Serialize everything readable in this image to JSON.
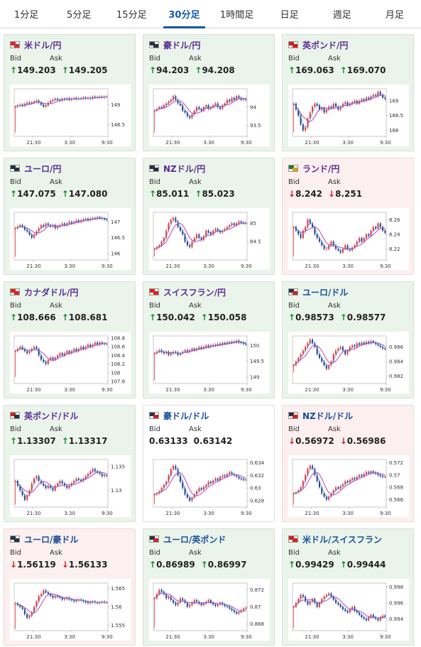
{
  "tabs": [
    {
      "label": "1分足",
      "active": false
    },
    {
      "label": "5分足",
      "active": false
    },
    {
      "label": "15分足",
      "active": false
    },
    {
      "label": "30分足",
      "active": true
    },
    {
      "label": "1時間足",
      "active": false
    },
    {
      "label": "日足",
      "active": false
    },
    {
      "label": "週足",
      "active": false
    },
    {
      "label": "月足",
      "active": false
    }
  ],
  "labels": {
    "bid": "Bid",
    "ask": "Ask"
  },
  "x_ticks": [
    "21:30",
    "3:30",
    "9:30"
  ],
  "cards": [
    {
      "name": "米ドル/円",
      "bid": "149.203",
      "ask": "149.205",
      "dir": "up",
      "name_color": "purple",
      "flags": [
        "#d23",
        "#c33"
      ],
      "y_ticks": [
        "149",
        "148.5"
      ],
      "y_range": [
        148.2,
        149.4
      ],
      "first_low": 148.3,
      "series": [
        148.95,
        148.98,
        149.0,
        148.97,
        149.02,
        149.05,
        149.03,
        149.06,
        149.08,
        149.1,
        149.05,
        149.0,
        148.95,
        148.98,
        149.05,
        149.1,
        149.12,
        149.15,
        149.12,
        149.1,
        149.15,
        149.13,
        149.16,
        149.12,
        149.15,
        149.17,
        149.14,
        149.16,
        149.15,
        149.18,
        149.16,
        149.17,
        149.15,
        149.2,
        149.18,
        149.19,
        149.2,
        149.18,
        149.2,
        149.2
      ]
    },
    {
      "name": "豪ドル/円",
      "bid": "94.203",
      "ask": "94.208",
      "dir": "up",
      "name_color": "purple",
      "flags": [
        "#234",
        "#234"
      ],
      "y_ticks": [
        "94",
        "93.5"
      ],
      "y_range": [
        93.2,
        94.5
      ],
      "first_low": 93.3,
      "series": [
        93.9,
        93.95,
        94.0,
        93.98,
        94.05,
        94.1,
        94.15,
        94.2,
        94.3,
        94.2,
        94.1,
        94.05,
        93.9,
        93.85,
        93.75,
        93.7,
        93.8,
        93.9,
        94.0,
        93.95,
        93.9,
        94.0,
        94.05,
        93.95,
        94.0,
        94.05,
        94.1,
        94.0,
        93.95,
        94.05,
        94.1,
        94.2,
        94.15,
        94.25,
        94.2,
        94.3,
        94.25,
        94.2,
        94.22,
        94.2
      ]
    },
    {
      "name": "英ポンド/円",
      "bid": "169.063",
      "ask": "169.070",
      "dir": "up",
      "name_color": "purple",
      "flags": [
        "#c22",
        "#c22"
      ],
      "y_ticks": [
        "169",
        "168.5",
        "168"
      ],
      "y_range": [
        167.8,
        169.4
      ],
      "first_low": 167.95,
      "series": [
        168.9,
        168.7,
        168.5,
        168.2,
        168.0,
        168.1,
        168.4,
        168.6,
        168.8,
        168.9,
        168.85,
        168.7,
        168.75,
        168.6,
        168.7,
        168.8,
        168.75,
        168.9,
        168.8,
        168.7,
        168.8,
        168.9,
        168.95,
        168.85,
        168.9,
        168.95,
        169.0,
        168.9,
        169.0,
        169.05,
        169.0,
        169.1,
        169.05,
        169.15,
        169.2,
        169.15,
        169.3,
        169.2,
        169.1,
        169.06
      ]
    },
    {
      "name": "ユーロ/円",
      "bid": "147.075",
      "ask": "147.080",
      "dir": "up",
      "name_color": "purple",
      "flags": [
        "#234",
        "#234"
      ],
      "y_ticks": [
        "147",
        "146.5",
        "146"
      ],
      "y_range": [
        145.8,
        147.3
      ],
      "first_low": 145.9,
      "series": [
        146.8,
        146.85,
        146.9,
        146.85,
        146.75,
        146.7,
        146.6,
        146.5,
        146.6,
        146.7,
        146.8,
        146.9,
        146.85,
        146.95,
        146.9,
        146.85,
        146.9,
        146.8,
        146.85,
        146.9,
        146.95,
        146.9,
        146.95,
        147.0,
        146.95,
        147.0,
        147.05,
        147.0,
        147.05,
        147.08,
        147.1,
        147.05,
        147.1,
        147.12,
        147.1,
        147.15,
        147.12,
        147.1,
        147.08,
        147.07
      ]
    },
    {
      "name": "NZドル/円",
      "bid": "85.011",
      "ask": "85.023",
      "dir": "up",
      "name_color": "purple",
      "flags": [
        "#234",
        "#234"
      ],
      "y_ticks": [
        "85",
        "84.5"
      ],
      "y_range": [
        84.0,
        85.3
      ],
      "first_low": 84.1,
      "series": [
        84.3,
        84.35,
        84.4,
        84.5,
        84.6,
        84.8,
        85.0,
        85.1,
        85.15,
        85.05,
        84.9,
        84.8,
        84.7,
        84.5,
        84.4,
        84.35,
        84.5,
        84.6,
        84.7,
        84.6,
        84.55,
        84.65,
        84.8,
        84.75,
        84.7,
        84.8,
        84.85,
        84.8,
        84.75,
        84.8,
        84.85,
        84.9,
        84.95,
        85.0,
        84.95,
        85.0,
        85.05,
        85.02,
        85.0,
        85.01
      ]
    },
    {
      "name": "ランド/円",
      "bid": "8.242",
      "ask": "8.251",
      "dir": "down",
      "name_color": "purple",
      "flags": [
        "#1a7a3a",
        "#d8a020"
      ],
      "y_ticks": [
        "8.26",
        "8.24",
        "8.22"
      ],
      "y_range": [
        8.205,
        8.27
      ],
      "first_low": 8.21,
      "series": [
        8.25,
        8.245,
        8.24,
        8.235,
        8.245,
        8.25,
        8.26,
        8.255,
        8.25,
        8.24,
        8.235,
        8.23,
        8.225,
        8.22,
        8.22,
        8.225,
        8.23,
        8.225,
        8.22,
        8.218,
        8.215,
        8.22,
        8.225,
        8.22,
        8.218,
        8.222,
        8.225,
        8.23,
        8.235,
        8.23,
        8.235,
        8.24,
        8.238,
        8.245,
        8.25,
        8.248,
        8.255,
        8.25,
        8.245,
        8.242
      ]
    },
    {
      "name": "カナダドル/円",
      "bid": "108.666",
      "ask": "108.681",
      "dir": "up",
      "name_color": "purple",
      "flags": [
        "#d22",
        "#d22"
      ],
      "y_ticks": [
        "108.8",
        "108.6",
        "108.4",
        "108.2",
        "108",
        "107.8"
      ],
      "y_range": [
        107.75,
        108.85
      ],
      "first_low": 107.9,
      "series": [
        108.5,
        108.55,
        108.6,
        108.55,
        108.5,
        108.45,
        108.5,
        108.55,
        108.6,
        108.55,
        108.4,
        108.3,
        108.25,
        108.2,
        108.3,
        108.35,
        108.3,
        108.35,
        108.4,
        108.45,
        108.4,
        108.45,
        108.5,
        108.45,
        108.5,
        108.55,
        108.5,
        108.55,
        108.6,
        108.55,
        108.6,
        108.65,
        108.6,
        108.65,
        108.7,
        108.65,
        108.7,
        108.68,
        108.66,
        108.67
      ]
    },
    {
      "name": "スイスフラン/円",
      "bid": "150.042",
      "ask": "150.058",
      "dir": "up",
      "name_color": "purple",
      "flags": [
        "#d22",
        "#d22"
      ],
      "y_ticks": [
        "150",
        "149.5",
        "149"
      ],
      "y_range": [
        148.8,
        150.3
      ],
      "first_low": 148.9,
      "series": [
        149.75,
        149.8,
        149.85,
        149.8,
        149.75,
        149.8,
        149.7,
        149.75,
        149.8,
        149.78,
        149.7,
        149.75,
        149.8,
        149.85,
        149.8,
        149.85,
        149.9,
        149.85,
        149.9,
        149.95,
        149.9,
        149.95,
        150.0,
        149.95,
        150.0,
        150.02,
        150.0,
        150.05,
        150.02,
        150.08,
        150.05,
        150.1,
        150.08,
        150.12,
        150.1,
        150.15,
        150.1,
        150.08,
        150.05,
        150.04
      ]
    },
    {
      "name": "ユーロ/ドル",
      "bid": "0.98573",
      "ask": "0.98577",
      "dir": "up",
      "name_color": "blue",
      "flags": [
        "#234",
        "#c22"
      ],
      "y_ticks": [
        "0.986",
        "0.984",
        "0.982"
      ],
      "y_range": [
        0.981,
        0.9875
      ],
      "first_low": 0.9825,
      "series": [
        0.9835,
        0.984,
        0.9845,
        0.985,
        0.9855,
        0.986,
        0.9865,
        0.987,
        0.9865,
        0.986,
        0.985,
        0.9845,
        0.984,
        0.9835,
        0.983,
        0.9835,
        0.984,
        0.985,
        0.9855,
        0.9858,
        0.986,
        0.9855,
        0.985,
        0.9855,
        0.986,
        0.9862,
        0.986,
        0.9865,
        0.9863,
        0.9866,
        0.9864,
        0.9867,
        0.9865,
        0.9868,
        0.9866,
        0.9864,
        0.9862,
        0.986,
        0.9858,
        0.9857
      ]
    },
    {
      "name": "英ポンド/ドル",
      "bid": "1.13307",
      "ask": "1.13317",
      "dir": "up",
      "name_color": "purple",
      "flags": [
        "#c22",
        "#234"
      ],
      "y_ticks": [
        "1.135",
        "1.13"
      ],
      "y_range": [
        1.1265,
        1.1365
      ],
      "first_low": 1.127,
      "series": [
        1.132,
        1.131,
        1.13,
        1.129,
        1.128,
        1.129,
        1.13,
        1.1315,
        1.1325,
        1.133,
        1.132,
        1.1315,
        1.131,
        1.1305,
        1.131,
        1.1305,
        1.13,
        1.131,
        1.1315,
        1.132,
        1.1315,
        1.131,
        1.1305,
        1.131,
        1.1315,
        1.132,
        1.1325,
        1.1322,
        1.132,
        1.1325,
        1.133,
        1.1335,
        1.134,
        1.1345,
        1.134,
        1.1338,
        1.1335,
        1.133,
        1.1332,
        1.1331
      ]
    },
    {
      "name": "豪ドル/ドル",
      "bid": "0.63133",
      "ask": "0.63142",
      "dir": "flat",
      "name_color": "blue",
      "flags": [
        "#234",
        "#c22"
      ],
      "y_ticks": [
        "0.634",
        "0.632",
        "0.63",
        "0.628"
      ],
      "y_range": [
        0.627,
        0.6345
      ],
      "first_low": 0.6275,
      "series": [
        0.629,
        0.6292,
        0.6295,
        0.63,
        0.6305,
        0.631,
        0.632,
        0.633,
        0.6335,
        0.633,
        0.632,
        0.631,
        0.63,
        0.629,
        0.6285,
        0.628,
        0.6285,
        0.629,
        0.6295,
        0.63,
        0.6298,
        0.6302,
        0.6305,
        0.631,
        0.6308,
        0.6312,
        0.6315,
        0.6312,
        0.6318,
        0.632,
        0.6318,
        0.6322,
        0.6325,
        0.6322,
        0.632,
        0.6318,
        0.6315,
        0.6314,
        0.6313,
        0.6313
      ]
    },
    {
      "name": "NZドル/ドル",
      "bid": "0.56972",
      "ask": "0.56986",
      "dir": "down",
      "name_color": "blue",
      "flags": [
        "#234",
        "#c22"
      ],
      "y_ticks": [
        "0.572",
        "0.57",
        "0.568",
        "0.566"
      ],
      "y_range": [
        0.5648,
        0.5725
      ],
      "first_low": 0.5652,
      "series": [
        0.567,
        0.5672,
        0.5675,
        0.568,
        0.569,
        0.57,
        0.571,
        0.5715,
        0.571,
        0.57,
        0.569,
        0.568,
        0.567,
        0.5665,
        0.566,
        0.5665,
        0.567,
        0.5675,
        0.568,
        0.5678,
        0.5682,
        0.5685,
        0.569,
        0.5688,
        0.5692,
        0.5695,
        0.5693,
        0.5697,
        0.57,
        0.5698,
        0.5702,
        0.5705,
        0.5703,
        0.5706,
        0.5704,
        0.5702,
        0.57,
        0.5698,
        0.5697,
        0.5697
      ]
    },
    {
      "name": "ユーロ/豪ドル",
      "bid": "1.56119",
      "ask": "1.56133",
      "dir": "down",
      "name_color": "blue",
      "flags": [
        "#234",
        "#234"
      ],
      "y_ticks": [
        "1.565",
        "1.56",
        "1.555"
      ],
      "y_range": [
        1.5535,
        1.5665
      ],
      "first_low": 1.554,
      "series": [
        1.561,
        1.5605,
        1.56,
        1.5595,
        1.558,
        1.557,
        1.5575,
        1.5585,
        1.56,
        1.5615,
        1.563,
        1.5635,
        1.5645,
        1.564,
        1.5635,
        1.563,
        1.5625,
        1.563,
        1.5628,
        1.5625,
        1.562,
        1.5622,
        1.5625,
        1.562,
        1.5618,
        1.5615,
        1.5618,
        1.562,
        1.5618,
        1.5615,
        1.5612,
        1.561,
        1.5613,
        1.5615,
        1.5612,
        1.561,
        1.5612,
        1.5614,
        1.5612,
        1.5612
      ]
    },
    {
      "name": "ユーロ/英ポンド",
      "bid": "0.86989",
      "ask": "0.86997",
      "dir": "up",
      "name_color": "blue",
      "flags": [
        "#234",
        "#c22"
      ],
      "y_ticks": [
        "0.872",
        "0.87",
        "0.868"
      ],
      "y_range": [
        0.8672,
        0.8728
      ],
      "first_low": 0.8675,
      "series": [
        0.871,
        0.8715,
        0.872,
        0.8718,
        0.8715,
        0.871,
        0.8712,
        0.8708,
        0.8705,
        0.8702,
        0.8705,
        0.871,
        0.8708,
        0.8705,
        0.87,
        0.8702,
        0.8705,
        0.8708,
        0.8706,
        0.8704,
        0.8702,
        0.8704,
        0.8706,
        0.8708,
        0.8705,
        0.8703,
        0.8701,
        0.8703,
        0.8705,
        0.8703,
        0.8701,
        0.87,
        0.8698,
        0.8696,
        0.8694,
        0.8692,
        0.8694,
        0.8696,
        0.8698,
        0.8699
      ]
    },
    {
      "name": "米ドル/スイスフラン",
      "bid": "0.99429",
      "ask": "0.99444",
      "dir": "up",
      "name_color": "blue",
      "flags": [
        "#c22",
        "#d22"
      ],
      "y_ticks": [
        "0.998",
        "0.996",
        "0.994"
      ],
      "y_range": [
        0.9925,
        0.9985
      ],
      "first_low": 0.9928,
      "series": [
        0.9955,
        0.996,
        0.9965,
        0.997,
        0.9968,
        0.9962,
        0.9958,
        0.9962,
        0.9965,
        0.996,
        0.9955,
        0.996,
        0.9965,
        0.9968,
        0.997,
        0.9972,
        0.9968,
        0.9964,
        0.996,
        0.9958,
        0.9955,
        0.9952,
        0.995,
        0.9948,
        0.9952,
        0.9955,
        0.995,
        0.9948,
        0.9945,
        0.9942,
        0.994,
        0.9938,
        0.9942,
        0.9945,
        0.9942,
        0.994,
        0.9938,
        0.9942,
        0.9944,
        0.9943
      ]
    }
  ]
}
